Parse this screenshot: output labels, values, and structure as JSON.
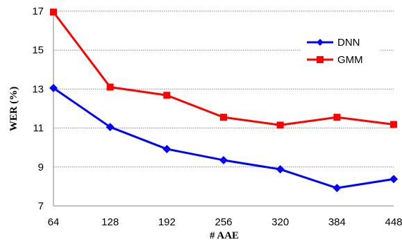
{
  "chart_data": {
    "type": "line",
    "title": "",
    "xlabel": "# AAE",
    "ylabel": "WER (%)",
    "categories": [
      "64",
      "128",
      "192",
      "256",
      "320",
      "384",
      "448"
    ],
    "y_ticks": [
      "7",
      "9",
      "11",
      "13",
      "15",
      "17"
    ],
    "ylim": [
      7,
      17
    ],
    "grid": "horizontal dotted",
    "legend_position": "top-right",
    "series": [
      {
        "name": "DNN",
        "color": "#0000FF",
        "marker": "diamond",
        "values": [
          13.05,
          11.05,
          9.92,
          9.35,
          8.88,
          7.92,
          8.38
        ]
      },
      {
        "name": "GMM",
        "color": "#FF0000",
        "marker": "square",
        "values": [
          16.95,
          13.1,
          12.68,
          11.55,
          11.15,
          11.55,
          11.18
        ]
      }
    ]
  }
}
